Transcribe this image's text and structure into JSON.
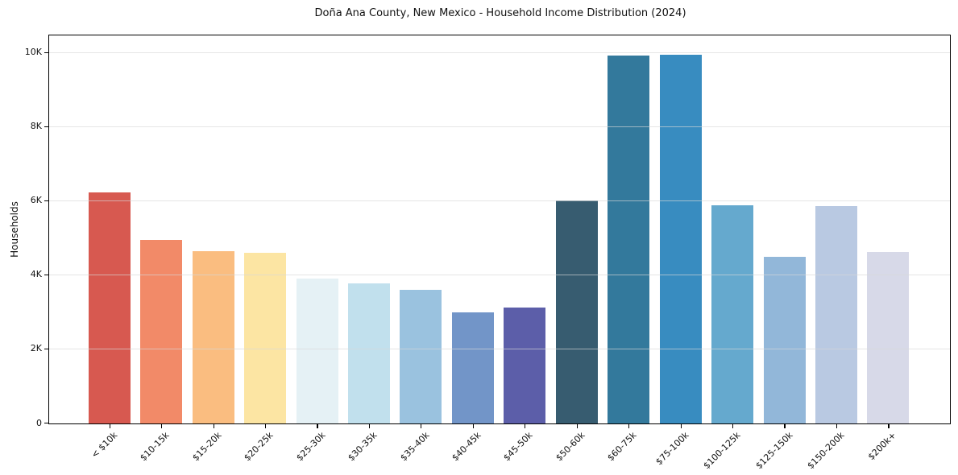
{
  "chart_data": {
    "type": "bar",
    "title": "Doña Ana County, New Mexico - Household Income Distribution (2024)",
    "xlabel": "",
    "ylabel": "Households",
    "categories": [
      "< $10k",
      "$10-15k",
      "$15-20k",
      "$20-25k",
      "$25-30k",
      "$30-35k",
      "$35-40k",
      "$40-45k",
      "$45-50k",
      "$50-60k",
      "$60-75k",
      "$75-100k",
      "$100-125k",
      "$125-150k",
      "$150-200k",
      "$200k+"
    ],
    "values": [
      6240,
      4960,
      4650,
      4610,
      3920,
      3790,
      3610,
      2990,
      3120,
      6020,
      9930,
      9950,
      5890,
      4500,
      5870,
      4620
    ],
    "bar_colors": [
      "#d75950",
      "#f28a68",
      "#fabd80",
      "#fce5a3",
      "#e5f1f5",
      "#c1e0ed",
      "#9ac2df",
      "#7295c8",
      "#5c5ea9",
      "#375c70",
      "#33799c",
      "#388cc0",
      "#65a9ce",
      "#92b7d9",
      "#b9c9e2",
      "#d7d9e8"
    ],
    "ylim": [
      0,
      10450
    ],
    "yticks": [
      {
        "value": 0,
        "label": "0"
      },
      {
        "value": 2000,
        "label": "2K"
      },
      {
        "value": 4000,
        "label": "4K"
      },
      {
        "value": 6000,
        "label": "6K"
      },
      {
        "value": 8000,
        "label": "8K"
      },
      {
        "value": 10000,
        "label": "10K"
      }
    ],
    "grid": "horizontal",
    "legend": "none",
    "background_color": "#ffffff",
    "spine_color": "#000000",
    "gridline_color": "#e7e7e7"
  }
}
